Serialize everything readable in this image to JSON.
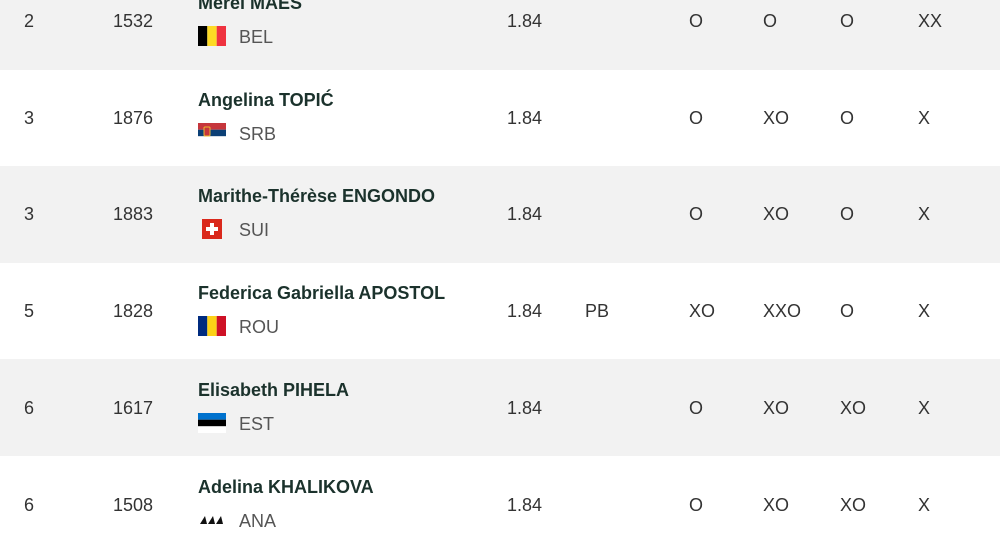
{
  "table": {
    "rows": [
      {
        "rank": "2",
        "bib": "1532",
        "name": "Merel MAES",
        "country": "BEL",
        "result": "1.84",
        "attempts": [
          "O",
          "O",
          "O",
          "XX"
        ]
      },
      {
        "rank": "3",
        "bib": "1876",
        "name": "Angelina TOPIĆ",
        "country": "SRB",
        "result": "1.84",
        "attempts": [
          "O",
          "XO",
          "O",
          "X"
        ]
      },
      {
        "rank": "3",
        "bib": "1883",
        "name": "Marithe-Thérèse ENGONDO",
        "country": "SUI",
        "result": "1.84",
        "attempts": [
          "O",
          "XO",
          "O",
          "X"
        ]
      },
      {
        "rank": "5",
        "bib": "1828",
        "name": "Federica Gabriella APOSTOL",
        "country": "ROU",
        "result": "1.84",
        "note": "PB",
        "attempts": [
          "XO",
          "XXO",
          "O",
          "X"
        ]
      },
      {
        "rank": "6",
        "bib": "1617",
        "name": "Elisabeth PIHELA",
        "country": "EST",
        "result": "1.84",
        "attempts": [
          "O",
          "XO",
          "XO",
          "X"
        ]
      },
      {
        "rank": "6",
        "bib": "1508",
        "name": "Adelina KHALIKOVA",
        "country": "ANA",
        "result": "1.84",
        "attempts": [
          "O",
          "XO",
          "XO",
          "X"
        ]
      }
    ]
  }
}
